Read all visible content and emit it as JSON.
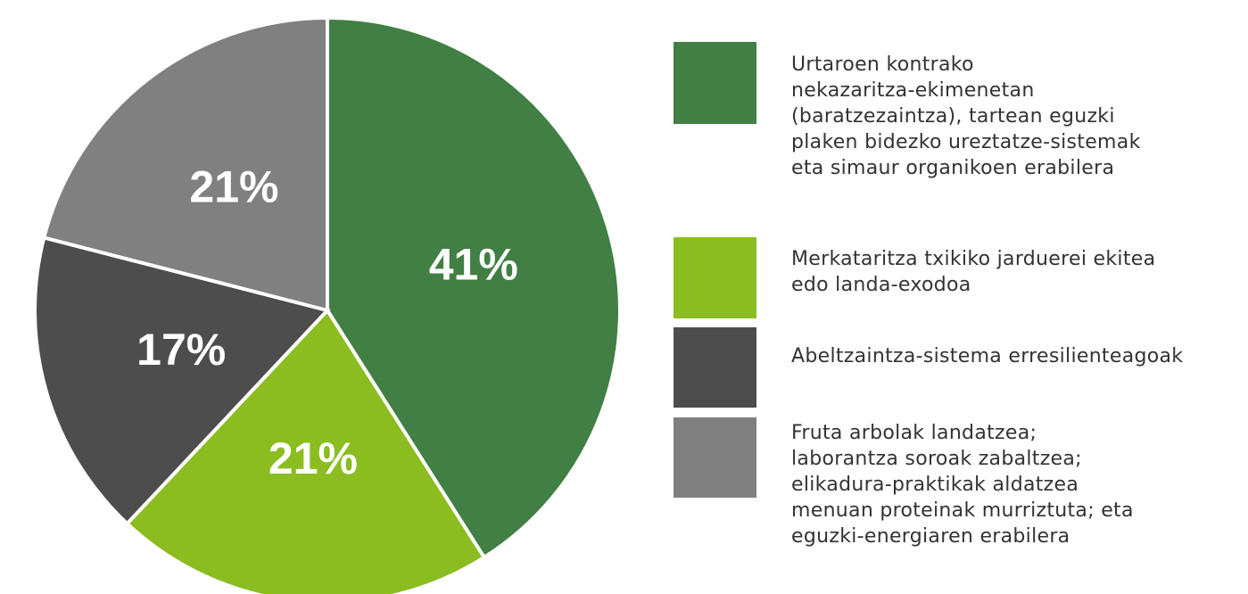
{
  "chart_data": {
    "type": "pie",
    "categories": [
      "Urtaroen kontrako\nnekazaritza-ekimenetan\n(baratzezaintza), tartean eguzki\nplaken bidezko ureztatze-sistemak\neta simaur organikoen erabilera",
      "Merkataritza txikiko jarduerei ekitea\nedo landa-exodoa",
      "Abeltzaintza-sistema erresilienteagoak",
      "Fruta arbolak landatzea;\nlaborantza soroak zabaltzea;\nelikadura-praktikak aldatzea\nmenuan proteinak murriztuta; eta\neguzki-energiaren erabilera"
    ],
    "values": [
      41,
      21,
      17,
      21
    ],
    "value_labels": [
      "41%",
      "21%",
      "17%",
      "21%"
    ],
    "colors": [
      "#417f45",
      "#8bbd21",
      "#4d4d4d",
      "#808080"
    ]
  }
}
